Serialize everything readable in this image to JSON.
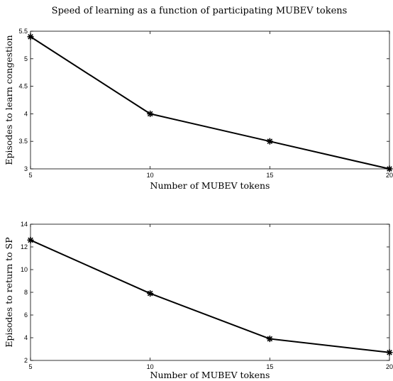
{
  "figure": {
    "title": "Speed of learning as a function of participating MUBEV tokens"
  },
  "chart_data": [
    {
      "type": "line",
      "title": "Speed of learning as a function of participating MUBEV tokens",
      "xlabel": "Number of MUBEV tokens",
      "ylabel": "Episodes to learn congestion",
      "x": [
        5,
        10,
        15,
        20
      ],
      "series": [
        {
          "values": [
            5.4,
            4.0,
            3.5,
            3.0
          ],
          "marker": "asterisk",
          "color": "#000000"
        }
      ],
      "xlim": [
        5,
        20
      ],
      "ylim": [
        3,
        5.5
      ],
      "xticks": [
        5,
        10,
        15,
        20
      ],
      "yticks": [
        3,
        3.5,
        4,
        4.5,
        5,
        5.5
      ],
      "grid": false
    },
    {
      "type": "line",
      "title": "",
      "xlabel": "Number of MUBEV tokens",
      "ylabel": "Episodes to return to SP",
      "x": [
        5,
        10,
        15,
        20
      ],
      "series": [
        {
          "values": [
            12.6,
            7.9,
            3.9,
            2.7
          ],
          "marker": "asterisk",
          "color": "#000000"
        }
      ],
      "xlim": [
        5,
        20
      ],
      "ylim": [
        2,
        14
      ],
      "xticks": [
        5,
        10,
        15,
        20
      ],
      "yticks": [
        2,
        4,
        6,
        8,
        10,
        12,
        14
      ],
      "grid": false
    }
  ]
}
